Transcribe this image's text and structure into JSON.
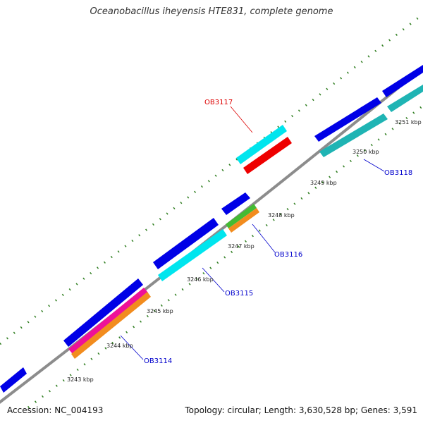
{
  "title": "Oceanobacillus iheyensis HTE831, complete genome",
  "footer": {
    "accession": "Accession: NC_004193",
    "summary": "Topology: circular; Length: 3,630,528 bp; Genes: 3,591"
  },
  "colors": {
    "backbone": "#8c8c8c",
    "tick": "#2e7d1f",
    "label_blue": "#0000cc",
    "label_red": "#dd0000",
    "blue_gene": "#0000e6",
    "cyan_gene": "#00e5ee",
    "teal_gene": "#1fb4b4",
    "red_gene": "#ee0000",
    "magenta_gene": "#ee1199",
    "orange_gene": "#f28c1e",
    "green_gene": "#44bb33"
  },
  "kbp_labels": [
    "3243 kbp",
    "3244 kbp",
    "3245 kbp",
    "3246 kbp",
    "3247 kbp",
    "3248 kbp",
    "3249 kbp",
    "3250 kbp",
    "3251 kbp"
  ],
  "gene_labels": [
    "OB3114",
    "OB3115",
    "OB3116",
    "OB3117",
    "OB3118"
  ]
}
